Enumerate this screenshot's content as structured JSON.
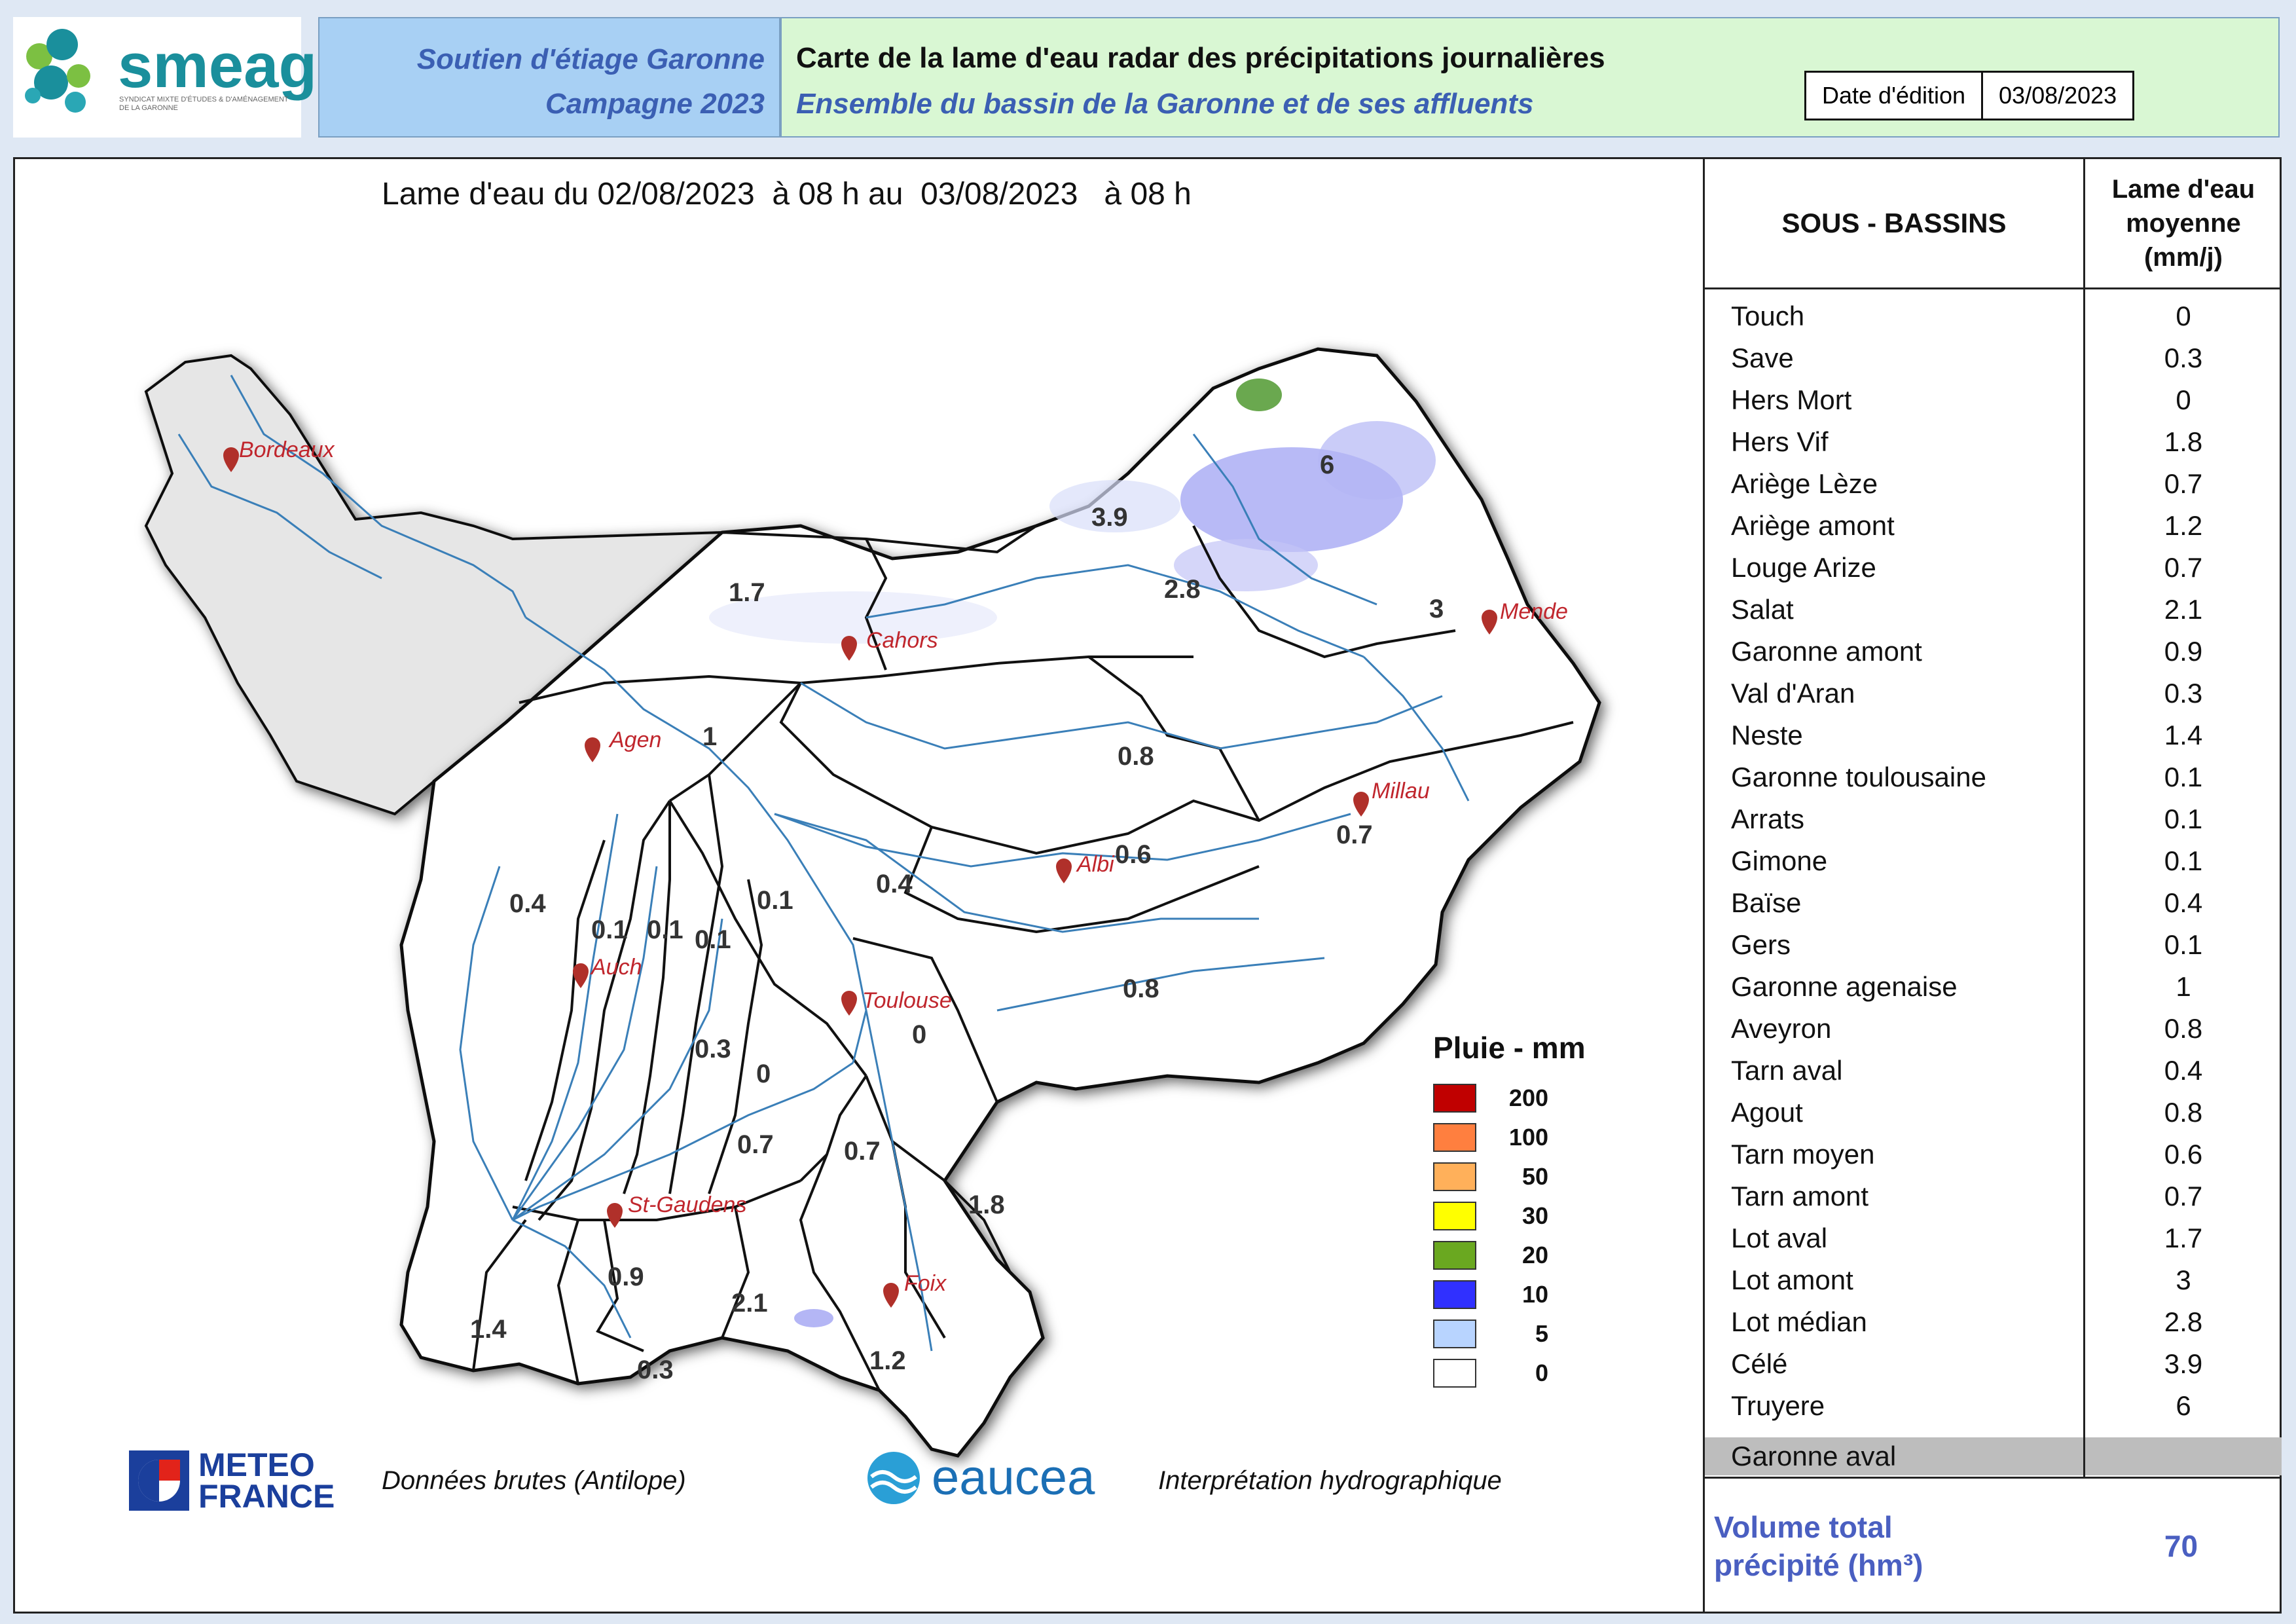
{
  "header": {
    "logo_text": "smeag",
    "logo_subtext": "SYNDICAT MIXTE D'ÉTUDES & D'AMÉNAGEMENT DE LA GARONNE",
    "campaign_line1": "Soutien d'étiage Garonne",
    "campaign_line2": "Campagne 2023",
    "title": "Carte de la lame d'eau radar des précipitations journalières",
    "subtitle": "Ensemble du bassin de la Garonne et de ses affluents",
    "date_label": "Date d'édition",
    "date_value": "03/08/2023"
  },
  "map": {
    "title": "Lame d'eau du 02/08/2023  à 08 h au  03/08/2023   à 08 h",
    "cities": [
      "Bordeaux",
      "Cahors",
      "Agen",
      "Mende",
      "Millau",
      "Albi",
      "Auch",
      "Toulouse",
      "St-Gaudens",
      "Foix"
    ],
    "basin_values": [
      "6",
      "3.9",
      "2.8",
      "1.7",
      "3",
      "1",
      "0.8",
      "0.4",
      "0.1",
      "0.1",
      "0.1",
      "0.1",
      "0.6",
      "0.4",
      "0.7",
      "0.8",
      "0.3",
      "0",
      "0",
      "0.7",
      "0.7",
      "1.8",
      "0.9",
      "2.1",
      "1.4",
      "0.3",
      "1.2"
    ],
    "colors": {
      "outside": "#e6e6e6",
      "basin": "#ffffff",
      "river": "#3a7fb8",
      "boundary": "#111111",
      "rain_light": "#c9d6f7",
      "rain_mid": "#8f8ff0",
      "rain_green": "#6aa84f"
    }
  },
  "legend": {
    "title": "Pluie - mm",
    "items": [
      {
        "value": "200",
        "color": "#c00000"
      },
      {
        "value": "100",
        "color": "#ff7f3f"
      },
      {
        "value": "50",
        "color": "#ffb05a"
      },
      {
        "value": "30",
        "color": "#ffff00"
      },
      {
        "value": "20",
        "color": "#6aa820"
      },
      {
        "value": "10",
        "color": "#3030ff"
      },
      {
        "value": "5",
        "color": "#b8d4ff"
      },
      {
        "value": "0",
        "color": "#ffffff"
      }
    ]
  },
  "footer": {
    "meteo_line1": "METEO",
    "meteo_line2": "FRANCE",
    "meteo_caption": "Données brutes (Antilope)",
    "eaucea_text": "eaucea",
    "eaucea_caption": "Interprétation hydrographique"
  },
  "table": {
    "col1_header": "SOUS - BASSINS",
    "col2_header_line1": "Lame d'eau",
    "col2_header_line2": "moyenne",
    "col2_header_line3": "(mm/j)",
    "rows": [
      {
        "name": "Touch",
        "value": "0"
      },
      {
        "name": "Save",
        "value": "0.3"
      },
      {
        "name": "Hers Mort",
        "value": "0"
      },
      {
        "name": "Hers Vif",
        "value": "1.8"
      },
      {
        "name": "Ariège Lèze",
        "value": "0.7"
      },
      {
        "name": "Ariège amont",
        "value": "1.2"
      },
      {
        "name": "Louge Arize",
        "value": "0.7"
      },
      {
        "name": "Salat",
        "value": "2.1"
      },
      {
        "name": "Garonne amont",
        "value": "0.9"
      },
      {
        "name": "Val d'Aran",
        "value": "0.3"
      },
      {
        "name": "Neste",
        "value": "1.4"
      },
      {
        "name": "Garonne toulousaine",
        "value": "0.1"
      },
      {
        "name": "Arrats",
        "value": "0.1"
      },
      {
        "name": "Gimone",
        "value": "0.1"
      },
      {
        "name": "Baïse",
        "value": "0.4"
      },
      {
        "name": "Gers",
        "value": "0.1"
      },
      {
        "name": "Garonne agenaise",
        "value": "1"
      },
      {
        "name": "Aveyron",
        "value": "0.8"
      },
      {
        "name": "Tarn aval",
        "value": "0.4"
      },
      {
        "name": "Agout",
        "value": "0.8"
      },
      {
        "name": "Tarn moyen",
        "value": "0.6"
      },
      {
        "name": "Tarn amont",
        "value": "0.7"
      },
      {
        "name": "Lot aval",
        "value": "1.7"
      },
      {
        "name": "Lot amont",
        "value": "3"
      },
      {
        "name": "Lot médian",
        "value": "2.8"
      },
      {
        "name": "Célé",
        "value": "3.9"
      },
      {
        "name": "Truyere",
        "value": "6"
      }
    ],
    "gray_row": "Garonne aval",
    "volume_label_line1": "Volume total",
    "volume_label_line2": "précipité (hm³)",
    "volume_value": "70"
  }
}
